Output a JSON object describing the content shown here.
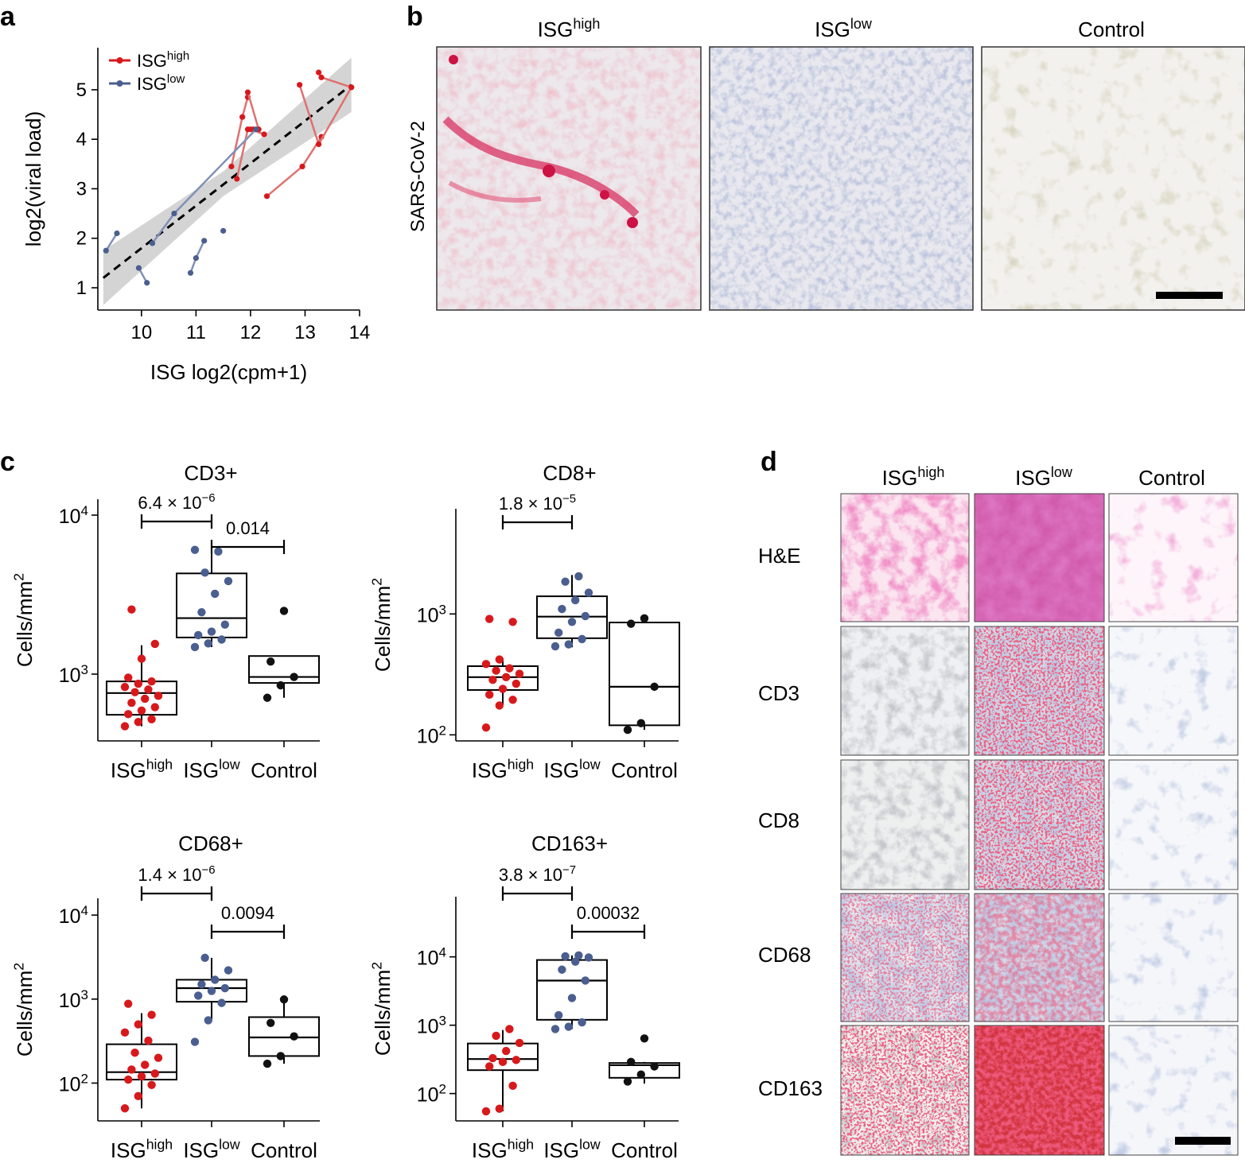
{
  "panel_labels": [
    "a",
    "b",
    "c",
    "d"
  ],
  "colors": {
    "high": "#d7191c",
    "high_line": "#e07070",
    "low": "#4a5e8f",
    "low_line": "#8091b7",
    "control": "#111111",
    "band": "#cfcfcf"
  },
  "chart_data": [
    {
      "id": "a",
      "type": "scatter",
      "xlabel": "ISG log2(cpm+1)",
      "ylabel": "log2(viral load)",
      "xlim": [
        9.2,
        14.0
      ],
      "ylim": [
        0.55,
        5.85
      ],
      "x_ticks": [
        10,
        11,
        12,
        13,
        14
      ],
      "y_ticks": [
        1,
        2,
        3,
        4,
        5
      ],
      "legend": [
        {
          "label": "ISG",
          "sup": "high",
          "key": "high"
        },
        {
          "label": "ISG",
          "sup": "low",
          "key": "low"
        }
      ],
      "legend_placement": "top-left",
      "trend": {
        "style": "dashed",
        "x": [
          9.3,
          13.85
        ],
        "y": [
          1.2,
          5.1
        ]
      },
      "band_upper": [
        [
          9.3,
          1.75
        ],
        [
          11.5,
          3.35
        ],
        [
          13.85,
          5.65
        ]
      ],
      "band_lower": [
        [
          9.3,
          0.65
        ],
        [
          11.5,
          2.85
        ],
        [
          13.85,
          4.55
        ]
      ],
      "series": [
        {
          "name": "ISG high",
          "key": "high",
          "pairs": [
            [
              [
                11.75,
                3.2
              ],
              [
                11.95,
                4.2
              ],
              [
                12.05,
                4.2
              ]
            ],
            [
              [
                11.65,
                3.45
              ],
              [
                11.85,
                4.45
              ],
              [
                11.95,
                4.85
              ]
            ],
            [
              [
                12.0,
                4.2
              ],
              [
                12.25,
                4.1
              ]
            ],
            [
              [
                11.95,
                4.95
              ],
              [
                12.15,
                4.2
              ]
            ],
            [
              [
                12.3,
                2.85
              ],
              [
                12.95,
                3.45
              ],
              [
                13.3,
                4.05
              ]
            ],
            [
              [
                12.9,
                5.1
              ],
              [
                13.25,
                3.9
              ],
              [
                13.85,
                5.05
              ]
            ],
            [
              [
                13.25,
                5.35
              ],
              [
                13.3,
                5.25
              ],
              [
                13.85,
                5.05
              ]
            ]
          ]
        },
        {
          "name": "ISG low",
          "key": "low",
          "pairs": [
            [
              [
                9.35,
                1.75
              ],
              [
                9.55,
                2.1
              ]
            ],
            [
              [
                9.95,
                1.4
              ],
              [
                10.1,
                1.1
              ]
            ],
            [
              [
                10.2,
                1.9
              ],
              [
                10.6,
                2.5
              ],
              [
                12.1,
                4.2
              ]
            ],
            [
              [
                10.9,
                1.3
              ],
              [
                11.0,
                1.6
              ],
              [
                11.15,
                1.95
              ]
            ],
            [
              [
                11.5,
                2.15
              ]
            ]
          ]
        }
      ]
    },
    {
      "id": "b",
      "type": "image-panel",
      "columns": [
        {
          "label": "ISG",
          "sup": "high"
        },
        {
          "label": "ISG",
          "sup": "low"
        },
        {
          "label": "Control",
          "sup": ""
        }
      ],
      "row_label": "SARS-CoV-2"
    },
    {
      "id": "c1",
      "type": "box",
      "title": "CD3+",
      "ylabel": "Cells/mm",
      "ylabel_sup": "2",
      "log_scale": true,
      "ylim": [
        2.58,
        4.1
      ],
      "y_ticks": [
        3,
        4
      ],
      "categories": [
        {
          "label": "ISG",
          "sup": "high"
        },
        {
          "label": "ISG",
          "sup": "low"
        },
        {
          "label": "Control",
          "sup": ""
        }
      ],
      "boxes": [
        {
          "key": "high",
          "q1": 555,
          "median": 760,
          "q3": 900,
          "whisker_low": 470,
          "whisker_high": 1520,
          "points": [
            470,
            500,
            520,
            560,
            590,
            620,
            660,
            700,
            730,
            770,
            800,
            830,
            870,
            900,
            950,
            1250,
            1550,
            2550
          ]
        },
        {
          "key": "low",
          "q1": 1700,
          "median": 2250,
          "q3": 4300,
          "whisker_low": 1480,
          "whisker_high": 6050,
          "points": [
            1480,
            1560,
            1650,
            1760,
            1850,
            2050,
            2450,
            3200,
            3850,
            4350,
            5900,
            6050
          ]
        },
        {
          "key": "control",
          "q1": 880,
          "median": 960,
          "q3": 1300,
          "whisker_low": 710,
          "whisker_high": 1310,
          "points": [
            710,
            850,
            960,
            1200,
            2500
          ]
        }
      ],
      "comparisons": [
        {
          "from": 0,
          "to": 1,
          "label": "6.4 × 10",
          "sup": "−6"
        },
        {
          "from": 1,
          "to": 2,
          "label": "0.014",
          "sup": ""
        }
      ]
    },
    {
      "id": "c2",
      "type": "box",
      "title": "CD8+",
      "ylabel": "Cells/mm",
      "ylabel_sup": "2",
      "log_scale": true,
      "ylim": [
        1.95,
        3.87
      ],
      "y_ticks": [
        2,
        3
      ],
      "categories": [
        {
          "label": "ISG",
          "sup": "high"
        },
        {
          "label": "ISG",
          "sup": "low"
        },
        {
          "label": "Control",
          "sup": ""
        }
      ],
      "boxes": [
        {
          "key": "high",
          "q1": 235,
          "median": 300,
          "q3": 370,
          "whisker_low": 175,
          "whisker_high": 430,
          "points": [
            115,
            175,
            195,
            215,
            240,
            265,
            285,
            300,
            320,
            340,
            355,
            385,
            420,
            860,
            910
          ]
        },
        {
          "key": "low",
          "q1": 630,
          "median": 950,
          "q3": 1400,
          "whisker_low": 530,
          "whisker_high": 2100,
          "points": [
            540,
            560,
            620,
            700,
            860,
            960,
            1100,
            1300,
            1500,
            1850,
            2050
          ]
        },
        {
          "key": "control",
          "q1": 120,
          "median": 250,
          "q3": 850,
          "whisker_low": 110,
          "whisker_high": 920,
          "points": [
            110,
            125,
            250,
            830,
            920
          ]
        }
      ],
      "comparisons": [
        {
          "from": 0,
          "to": 1,
          "label": "1.8 × 10",
          "sup": "−5"
        }
      ]
    },
    {
      "id": "c3",
      "type": "box",
      "title": "CD68+",
      "ylabel": "Cells/mm",
      "ylabel_sup": "2",
      "log_scale": true,
      "ylim": [
        1.55,
        4.2
      ],
      "y_ticks": [
        2,
        3,
        4
      ],
      "categories": [
        {
          "label": "ISG",
          "sup": "high"
        },
        {
          "label": "ISG",
          "sup": "low"
        },
        {
          "label": "Control",
          "sup": ""
        }
      ],
      "boxes": [
        {
          "key": "high",
          "q1": 110,
          "median": 135,
          "q3": 290,
          "whisker_low": 50,
          "whisker_high": 680,
          "points": [
            50,
            70,
            95,
            110,
            120,
            130,
            145,
            165,
            200,
            230,
            320,
            400,
            500,
            650,
            880
          ]
        },
        {
          "key": "low",
          "q1": 930,
          "median": 1350,
          "q3": 1700,
          "whisker_low": 560,
          "whisker_high": 3100,
          "points": [
            310,
            560,
            900,
            1100,
            1250,
            1350,
            1500,
            1700,
            2200,
            3100
          ]
        },
        {
          "key": "control",
          "q1": 210,
          "median": 350,
          "q3": 610,
          "whisker_low": 170,
          "whisker_high": 990,
          "points": [
            170,
            210,
            360,
            520,
            990
          ]
        }
      ],
      "comparisons": [
        {
          "from": 0,
          "to": 1,
          "label": "1.4 × 10",
          "sup": "−6"
        },
        {
          "from": 1,
          "to": 2,
          "label": "0.0094",
          "sup": ""
        }
      ]
    },
    {
      "id": "c4",
      "type": "box",
      "title": "CD163+",
      "ylabel": "Cells/mm",
      "ylabel_sup": "2",
      "log_scale": true,
      "ylim": [
        1.6,
        4.88
      ],
      "y_ticks": [
        2,
        3,
        4
      ],
      "categories": [
        {
          "label": "ISG",
          "sup": "high"
        },
        {
          "label": "ISG",
          "sup": "low"
        },
        {
          "label": "Control",
          "sup": ""
        }
      ],
      "boxes": [
        {
          "key": "high",
          "q1": 220,
          "median": 320,
          "q3": 540,
          "whisker_low": 55,
          "whisker_high": 850,
          "points": [
            55,
            60,
            130,
            250,
            290,
            310,
            330,
            420,
            550,
            700,
            880
          ]
        },
        {
          "key": "low",
          "q1": 1200,
          "median": 4500,
          "q3": 9000,
          "whisker_low": 880,
          "whisker_high": 10500,
          "points": [
            880,
            950,
            1100,
            1400,
            2500,
            4500,
            6500,
            8500,
            9800,
            10200,
            10500
          ]
        },
        {
          "key": "control",
          "q1": 170,
          "median": 260,
          "q3": 280,
          "whisker_low": 140,
          "whisker_high": 290,
          "points": [
            150,
            190,
            250,
            290,
            640
          ]
        }
      ],
      "comparisons": [
        {
          "from": 0,
          "to": 1,
          "label": "3.8 × 10",
          "sup": "−7"
        },
        {
          "from": 1,
          "to": 2,
          "label": "0.00032",
          "sup": ""
        }
      ]
    },
    {
      "id": "d",
      "type": "image-grid",
      "columns": [
        {
          "label": "ISG",
          "sup": "high"
        },
        {
          "label": "ISG",
          "sup": "low"
        },
        {
          "label": "Control",
          "sup": ""
        }
      ],
      "rows": [
        "H&E",
        "CD3",
        "CD8",
        "CD68",
        "CD163"
      ]
    }
  ]
}
